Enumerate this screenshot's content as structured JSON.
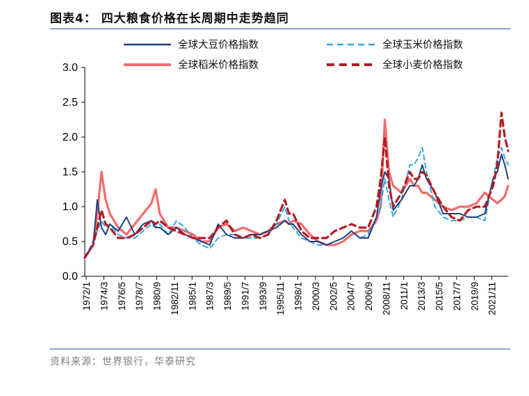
{
  "header": {
    "title": "图表4：  四大粮食价格在长周期中走势趋同"
  },
  "footer": {
    "source": "资料来源：世界银行，华泰研究"
  },
  "colors": {
    "soybean": "#1f3f7a",
    "corn": "#33a6dd",
    "rice": "#f26b6b",
    "wheat": "#b31b22",
    "rule": "#2f5597"
  },
  "chart_data": {
    "type": "line",
    "title": "四大粮食价格在长周期中走势趋同",
    "xlabel": "",
    "ylabel": "",
    "ylim": [
      0.0,
      3.0
    ],
    "yticks": [
      "0.0",
      "0.5",
      "1.0",
      "1.5",
      "2.0",
      "2.5",
      "3.0"
    ],
    "xticks": [
      "1972/1",
      "1974/3",
      "1976/5",
      "1978/7",
      "1980/9",
      "1982/11",
      "1985/1",
      "1987/3",
      "1989/5",
      "1991/7",
      "1993/9",
      "1995/11",
      "1998/1",
      "2000/3",
      "2002/5",
      "2004/7",
      "2006/9",
      "2008/11",
      "2011/1",
      "2013/3",
      "2015/5",
      "2017/7",
      "2019/9",
      "2021/11"
    ],
    "x": [
      1972.0,
      1973.0,
      1973.5,
      1974.0,
      1974.5,
      1975.0,
      1976.0,
      1977.0,
      1978.0,
      1979.0,
      1980.0,
      1980.5,
      1981.0,
      1982.0,
      1983.0,
      1984.0,
      1985.0,
      1986.0,
      1987.0,
      1988.0,
      1989.0,
      1990.0,
      1991.0,
      1992.0,
      1993.0,
      1994.0,
      1995.0,
      1996.0,
      1996.5,
      1997.0,
      1998.0,
      1999.0,
      2000.0,
      2001.0,
      2002.0,
      2003.0,
      2004.0,
      2005.0,
      2006.0,
      2007.0,
      2007.5,
      2008.0,
      2008.5,
      2009.0,
      2010.0,
      2011.0,
      2011.5,
      2012.0,
      2012.5,
      2013.0,
      2014.0,
      2015.0,
      2016.0,
      2017.0,
      2018.0,
      2019.0,
      2020.0,
      2021.0,
      2021.5,
      2022.0,
      2022.4,
      2022.8
    ],
    "series": [
      {
        "name": "全球大豆价格指数",
        "key": "soybean",
        "dash": "solid",
        "values": [
          0.27,
          0.45,
          1.1,
          0.7,
          0.6,
          0.75,
          0.65,
          0.85,
          0.6,
          0.75,
          0.8,
          0.7,
          0.7,
          0.6,
          0.7,
          0.6,
          0.55,
          0.5,
          0.45,
          0.75,
          0.6,
          0.55,
          0.55,
          0.6,
          0.6,
          0.65,
          0.7,
          0.8,
          0.75,
          0.75,
          0.6,
          0.5,
          0.5,
          0.45,
          0.5,
          0.55,
          0.65,
          0.55,
          0.55,
          0.85,
          1.25,
          1.5,
          1.4,
          0.95,
          1.1,
          1.3,
          1.3,
          1.4,
          1.6,
          1.4,
          1.2,
          0.9,
          0.9,
          0.9,
          0.85,
          0.85,
          0.9,
          1.4,
          1.5,
          1.75,
          1.6,
          1.4
        ]
      },
      {
        "name": "全球玉米价格指数",
        "key": "corn",
        "dash": "dashed",
        "values": [
          0.27,
          0.5,
          0.65,
          0.8,
          0.7,
          0.75,
          0.6,
          0.55,
          0.55,
          0.65,
          0.75,
          0.7,
          0.75,
          0.6,
          0.8,
          0.7,
          0.55,
          0.45,
          0.4,
          0.55,
          0.6,
          0.6,
          0.55,
          0.55,
          0.55,
          0.6,
          0.75,
          1.0,
          0.8,
          0.7,
          0.55,
          0.5,
          0.45,
          0.45,
          0.5,
          0.55,
          0.65,
          0.55,
          0.6,
          0.85,
          1.0,
          1.4,
          1.1,
          0.85,
          1.1,
          1.6,
          1.6,
          1.7,
          1.85,
          1.5,
          1.0,
          0.85,
          0.8,
          0.8,
          0.85,
          0.85,
          0.8,
          1.4,
          1.7,
          1.85,
          1.7,
          1.6
        ]
      },
      {
        "name": "全球稻米价格指数",
        "key": "rice",
        "dash": "solid",
        "values": [
          0.27,
          0.45,
          0.9,
          1.5,
          1.1,
          0.9,
          0.7,
          0.6,
          0.75,
          0.9,
          1.05,
          1.25,
          0.9,
          0.7,
          0.7,
          0.65,
          0.6,
          0.5,
          0.5,
          0.7,
          0.75,
          0.65,
          0.7,
          0.65,
          0.6,
          0.65,
          0.75,
          0.8,
          0.75,
          0.8,
          0.75,
          0.6,
          0.5,
          0.45,
          0.45,
          0.5,
          0.6,
          0.65,
          0.65,
          0.8,
          1.0,
          2.25,
          1.5,
          1.3,
          1.2,
          1.4,
          1.3,
          1.3,
          1.2,
          1.2,
          1.1,
          1.0,
          0.95,
          1.0,
          1.0,
          1.05,
          1.2,
          1.1,
          1.05,
          1.1,
          1.15,
          1.3
        ]
      },
      {
        "name": "全球小麦价格指数",
        "key": "wheat",
        "dash": "dashed",
        "values": [
          0.27,
          0.45,
          0.7,
          0.95,
          0.75,
          0.7,
          0.55,
          0.55,
          0.6,
          0.7,
          0.8,
          0.75,
          0.8,
          0.7,
          0.65,
          0.6,
          0.55,
          0.55,
          0.55,
          0.7,
          0.8,
          0.6,
          0.55,
          0.6,
          0.55,
          0.6,
          0.8,
          1.1,
          0.9,
          0.9,
          0.65,
          0.55,
          0.55,
          0.55,
          0.65,
          0.7,
          0.75,
          0.7,
          0.7,
          1.0,
          1.4,
          2.0,
          1.3,
          1.0,
          1.2,
          1.5,
          1.4,
          1.4,
          1.5,
          1.45,
          1.2,
          1.0,
          0.85,
          0.8,
          0.95,
          1.0,
          1.0,
          1.3,
          1.6,
          2.35,
          2.0,
          1.8
        ]
      }
    ],
    "legend": "top"
  }
}
